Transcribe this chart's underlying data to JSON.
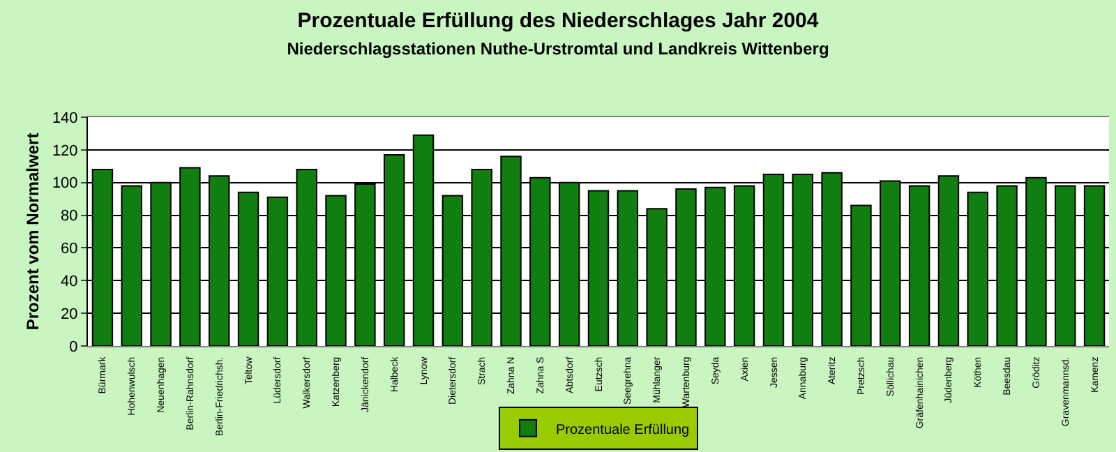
{
  "chart_data": {
    "type": "bar",
    "title": "Prozentuale Erfüllung des Niederschlages Jahr 2004",
    "subtitle": "Niederschlagsstationen Nuthe-Urstromtal und Landkreis Wittenberg",
    "ylabel": "Prozent vom Normalwert",
    "categories": [
      "Bürmark",
      "Hohenwulsch",
      "Neuenhagen",
      "Berlin-Rahnsdorf",
      "Berlin-Friedrichsh.",
      "Teltow",
      "Lüdersdorf",
      "Walkersdorf",
      "Katzenberg",
      "Jänickendorf",
      "Halbeck",
      "Lynow",
      "Dietersdorf",
      "Strach",
      "Zahna N",
      "Zahna S",
      "Abtsdorf",
      "Eutzsch",
      "Seegrehna",
      "Mühlanger",
      "Wartenburg",
      "Seyda",
      "Axien",
      "Jessen",
      "Annaburg",
      "Ateritz",
      "Pretzsch",
      "Söllichau",
      "Gräfenhainichen",
      "Jüdenberg",
      "Köthen",
      "Beesdau",
      "Gröditz",
      "Gravenmannsd.",
      "Kamenz"
    ],
    "series": [
      {
        "name": "Prozentuale Erfüllung",
        "color": "#107f10",
        "values": [
          108,
          98,
          100,
          109,
          104,
          94,
          91,
          108,
          92,
          99,
          117,
          129,
          92,
          108,
          116,
          103,
          100,
          95,
          95,
          84,
          96,
          97,
          98,
          105,
          105,
          106,
          86,
          101,
          98,
          104,
          94,
          98,
          103,
          98,
          98
        ]
      }
    ],
    "ylim": [
      0,
      140
    ],
    "yticks": [
      0,
      20,
      40,
      60,
      80,
      100,
      120,
      140
    ],
    "grid": "y",
    "legend": "bottom"
  }
}
